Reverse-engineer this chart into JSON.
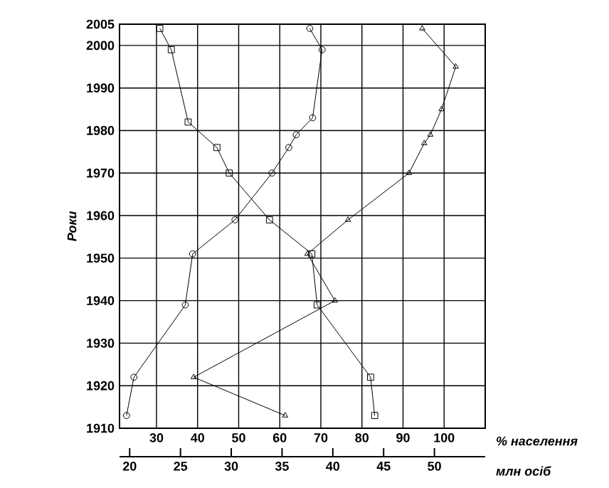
{
  "chart_data": {
    "type": "line",
    "orientation": "horizontal",
    "ylabel": "Роки",
    "xlabel": "% населення",
    "x2label": "млн осіб",
    "ylim": [
      1910,
      2005
    ],
    "yticks": [
      1910,
      1920,
      1930,
      1940,
      1950,
      1960,
      1970,
      1980,
      1990,
      2000,
      2005
    ],
    "xlim": [
      21,
      110
    ],
    "xticks": [
      30,
      40,
      50,
      60,
      70,
      80,
      90,
      100
    ],
    "x2lim": [
      19,
      55
    ],
    "x2ticks": [
      20,
      25,
      30,
      35,
      40,
      45,
      50
    ],
    "grid": true,
    "line_style": "solid",
    "series": [
      {
        "color": "#000000",
        "marker": "circle",
        "x": [
          1913,
          1922,
          1939,
          1951,
          1959,
          1970,
          1976,
          1979,
          1983,
          1999,
          2004
        ],
        "values": [
          22.7,
          24.5,
          37.0,
          38.8,
          49.1,
          58.1,
          62.2,
          64.0,
          68.0,
          70.3,
          67.3
        ]
      },
      {
        "color": "#000000",
        "marker": "square",
        "x": [
          1913,
          1922,
          1939,
          1951,
          1959,
          1970,
          1976,
          1982,
          1999,
          2004
        ],
        "values": [
          83.1,
          82.1,
          69.1,
          67.8,
          57.5,
          47.7,
          44.7,
          37.7,
          33.6,
          30.8
        ]
      },
      {
        "color": "#000000",
        "marker": "triangle",
        "axis": "x2",
        "x": [
          1913,
          1922,
          1940,
          1951,
          1959,
          1970,
          1977,
          1979,
          1985,
          1995,
          2004
        ],
        "values": [
          35.3,
          26.3,
          40.2,
          37.5,
          41.5,
          47.5,
          49.0,
          49.6,
          50.7,
          52.1,
          48.8
        ]
      }
    ]
  }
}
